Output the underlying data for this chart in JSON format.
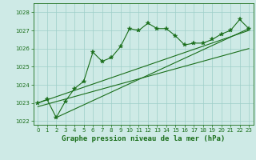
{
  "title": "Graphe pression niveau de la mer (hPa)",
  "x_values": [
    0,
    1,
    2,
    3,
    4,
    5,
    6,
    7,
    8,
    9,
    10,
    11,
    12,
    13,
    14,
    15,
    16,
    17,
    18,
    19,
    20,
    21,
    22,
    23
  ],
  "y_values": [
    1023.0,
    1023.2,
    1022.2,
    1023.1,
    1023.8,
    1024.2,
    1025.8,
    1025.3,
    1025.5,
    1026.1,
    1027.1,
    1027.0,
    1027.4,
    1027.1,
    1027.1,
    1026.7,
    1026.2,
    1026.3,
    1026.3,
    1026.5,
    1026.8,
    1027.0,
    1027.6,
    1027.1
  ],
  "trend1_x": [
    0,
    23
  ],
  "trend1_y": [
    1023.0,
    1027.0
  ],
  "trend2_x": [
    0,
    23
  ],
  "trend2_y": [
    1022.8,
    1026.0
  ],
  "trend3_x": [
    2,
    23
  ],
  "trend3_y": [
    1022.2,
    1027.1
  ],
  "ylim": [
    1021.8,
    1028.5
  ],
  "yticks": [
    1022,
    1023,
    1024,
    1025,
    1026,
    1027,
    1028
  ],
  "xlim": [
    -0.5,
    23.5
  ],
  "xticks": [
    0,
    1,
    2,
    3,
    4,
    5,
    6,
    7,
    8,
    9,
    10,
    11,
    12,
    13,
    14,
    15,
    16,
    17,
    18,
    19,
    20,
    21,
    22,
    23
  ],
  "line_color": "#1a6e1a",
  "bg_color": "#ceeae6",
  "grid_color": "#9ecec8",
  "marker": "*",
  "marker_size": 4,
  "title_fontsize": 6.5,
  "tick_fontsize": 5.0
}
